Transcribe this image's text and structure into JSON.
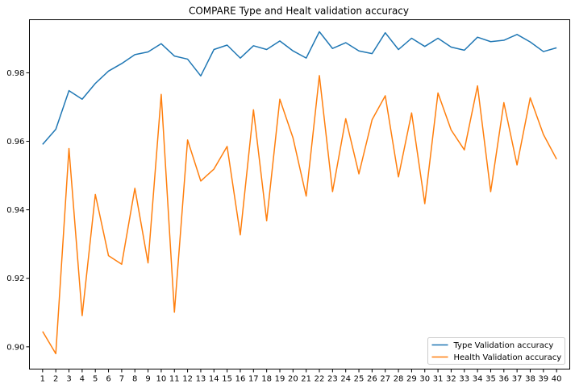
{
  "chart_data": {
    "type": "line",
    "title": "COMPARE Type and Healt validation accuracy",
    "xlabel": "",
    "ylabel": "",
    "x": [
      1,
      2,
      3,
      4,
      5,
      6,
      7,
      8,
      9,
      10,
      11,
      12,
      13,
      14,
      15,
      16,
      17,
      18,
      19,
      20,
      21,
      22,
      23,
      24,
      25,
      26,
      27,
      28,
      29,
      30,
      31,
      32,
      33,
      34,
      35,
      36,
      37,
      38,
      39,
      40
    ],
    "x_ticks": [
      "1",
      "2",
      "3",
      "4",
      "5",
      "6",
      "7",
      "8",
      "9",
      "10",
      "11",
      "12",
      "13",
      "14",
      "15",
      "16",
      "17",
      "18",
      "19",
      "20",
      "21",
      "22",
      "23",
      "24",
      "25",
      "26",
      "27",
      "28",
      "29",
      "30",
      "31",
      "32",
      "33",
      "34",
      "35",
      "36",
      "37",
      "38",
      "39",
      "40"
    ],
    "y_ticks": [
      "0.90",
      "0.92",
      "0.94",
      "0.96",
      "0.98"
    ],
    "y_tick_values": [
      0.9,
      0.92,
      0.94,
      0.96,
      0.98
    ],
    "xlim": [
      0,
      41
    ],
    "ylim": [
      0.8935,
      0.9955
    ],
    "grid": false,
    "legend_position": "bottom-right",
    "series": [
      {
        "name": "Type Validation accuracy",
        "color": "#1f77b4",
        "values": [
          0.9591,
          0.9635,
          0.9748,
          0.9723,
          0.9769,
          0.9805,
          0.9827,
          0.9853,
          0.9861,
          0.9885,
          0.9849,
          0.984,
          0.9791,
          0.9868,
          0.9881,
          0.9843,
          0.9879,
          0.9868,
          0.9893,
          0.9864,
          0.9843,
          0.992,
          0.9871,
          0.9888,
          0.9864,
          0.9856,
          0.9917,
          0.9868,
          0.9901,
          0.9877,
          0.9901,
          0.9875,
          0.9866,
          0.9904,
          0.9891,
          0.9895,
          0.9912,
          0.989,
          0.9862,
          0.9873
        ]
      },
      {
        "name": "Health Validation accuracy",
        "color": "#ff7f0e",
        "values": [
          0.9045,
          0.898,
          0.9579,
          0.9091,
          0.9445,
          0.9266,
          0.9241,
          0.9463,
          0.9245,
          0.9737,
          0.9101,
          0.9604,
          0.9484,
          0.9519,
          0.9585,
          0.9327,
          0.9692,
          0.9368,
          0.9723,
          0.961,
          0.944,
          0.9792,
          0.9453,
          0.9666,
          0.9505,
          0.9663,
          0.9733,
          0.9496,
          0.9683,
          0.9418,
          0.9741,
          0.9633,
          0.9575,
          0.9762,
          0.9453,
          0.9713,
          0.9531,
          0.9727,
          0.962,
          0.9548
        ]
      }
    ]
  }
}
